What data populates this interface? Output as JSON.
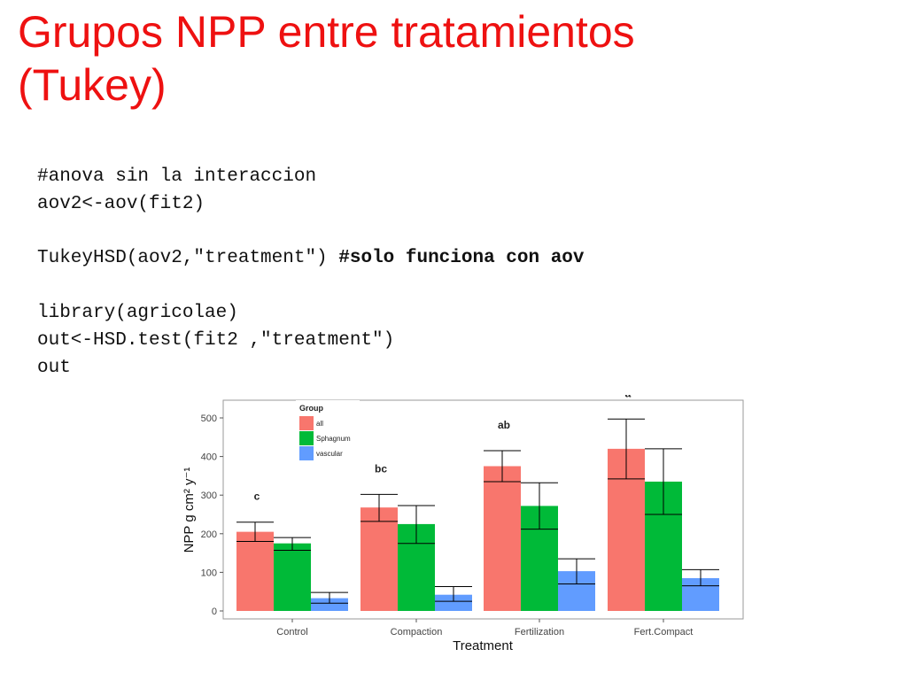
{
  "slide": {
    "title_line1": "Grupos NPP entre tratamientos",
    "title_line2": "(Tukey)"
  },
  "code": {
    "line1": "#anova sin la interaccion",
    "line2": "aov2<-aov(fit2)",
    "line3_code": "TukeyHSD(aov2,\"treatment\") ",
    "line3_comment": "#solo funciona con aov",
    "line4": "library(agricolae)",
    "line5": "out<-HSD.test(fit2 ,\"treatment\")",
    "line6": "out"
  },
  "colors": {
    "title": "#ee1111",
    "all": "#f8766d",
    "sphagnum": "#00ba38",
    "vascular": "#619cff"
  },
  "chart_data": {
    "type": "bar",
    "categories": [
      "Control",
      "Compaction",
      "Fertilization",
      "Fert.Compact"
    ],
    "series": [
      {
        "name": "all",
        "color": "#f8766d",
        "values": [
          205,
          268,
          375,
          420
        ],
        "err_low": [
          180,
          232,
          335,
          342
        ],
        "err_high": [
          230,
          302,
          415,
          497
        ]
      },
      {
        "name": "Sphagnum",
        "color": "#00ba38",
        "values": [
          175,
          225,
          272,
          335
        ],
        "err_low": [
          157,
          175,
          212,
          250
        ],
        "err_high": [
          190,
          273,
          332,
          420
        ]
      },
      {
        "name": "vascular",
        "color": "#619cff",
        "values": [
          33,
          42,
          103,
          85
        ],
        "err_low": [
          20,
          25,
          70,
          65
        ],
        "err_high": [
          48,
          63,
          135,
          107
        ]
      }
    ],
    "group_letters": [
      "c",
      "bc",
      "ab",
      "a"
    ],
    "xlabel": "Treatment",
    "ylabel": "NPP g cm² y⁻¹",
    "ylim": [
      -10,
      530
    ],
    "yticks": [
      "0",
      "100",
      "200",
      "300",
      "400",
      "500"
    ],
    "legend_title": "Group",
    "legend_position": "top-left",
    "grid": false
  }
}
